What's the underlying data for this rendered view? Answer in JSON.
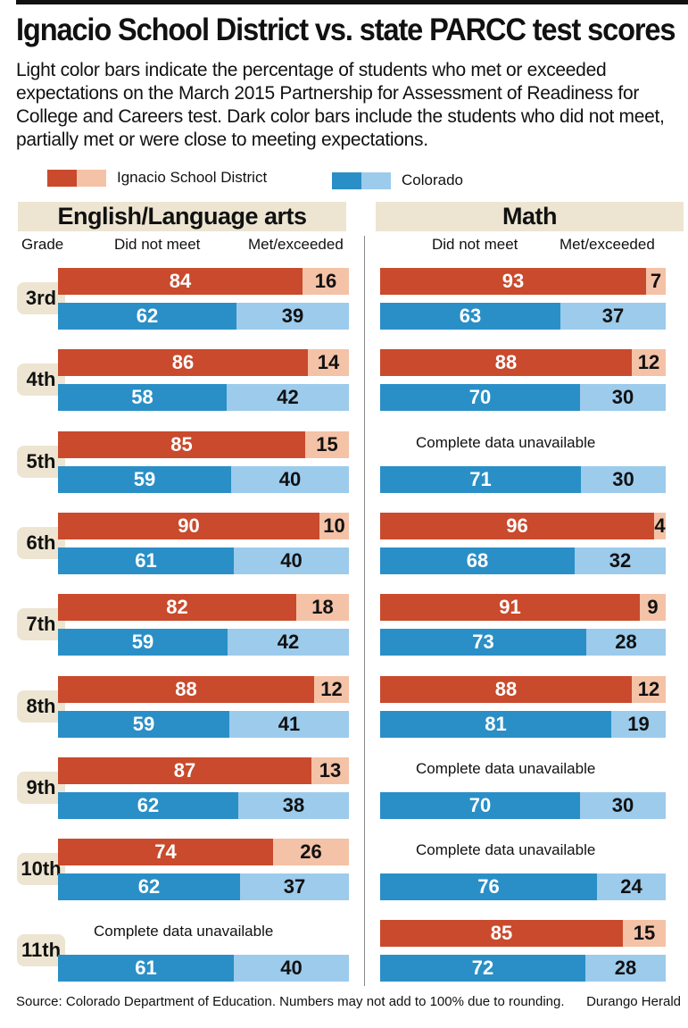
{
  "title": "Ignacio School District vs. state PARCC test scores",
  "subtitle": "Light color bars indicate the percentage of students who met or exceeded expectations on the March 2015 Partnership for Assessment of Readiness for College and Careers test. Dark color bars include the students who did not meet, partially met or were close to meeting expectations.",
  "legend": {
    "ignacio": "Ignacio School District",
    "colorado": "Colorado"
  },
  "colors": {
    "ignacio_dark": "#c94a2c",
    "ignacio_light": "#f4c2a6",
    "colorado_dark": "#2a8fc6",
    "colorado_light": "#9ccbec",
    "header_bg": "#ede5d1"
  },
  "labels": {
    "grade": "Grade",
    "did_not_meet": "Did not meet",
    "met_exceeded": "Met/exceeded",
    "unavailable": "Complete data unavailable",
    "source": "Source: Colorado Department of Education. Numbers may not add to 100% due to rounding.",
    "credit": "Durango Herald"
  },
  "chart_data": {
    "type": "bar",
    "stacked": true,
    "orientation": "horizontal",
    "categories": [
      "3rd",
      "4th",
      "5th",
      "6th",
      "7th",
      "8th",
      "9th",
      "10th",
      "11th"
    ],
    "panels": [
      {
        "title": "English/Language arts",
        "series": [
          {
            "name": "Ignacio School District",
            "did_not_meet": [
              84,
              86,
              85,
              90,
              82,
              88,
              87,
              74,
              null
            ],
            "met_exceeded": [
              16,
              14,
              15,
              10,
              18,
              12,
              13,
              26,
              null
            ]
          },
          {
            "name": "Colorado",
            "did_not_meet": [
              62,
              58,
              59,
              61,
              59,
              59,
              62,
              62,
              61
            ],
            "met_exceeded": [
              39,
              42,
              40,
              40,
              42,
              41,
              38,
              37,
              40
            ]
          }
        ]
      },
      {
        "title": "Math",
        "series": [
          {
            "name": "Ignacio School District",
            "did_not_meet": [
              93,
              88,
              null,
              96,
              91,
              88,
              null,
              null,
              85
            ],
            "met_exceeded": [
              7,
              12,
              null,
              4,
              9,
              12,
              null,
              null,
              15
            ]
          },
          {
            "name": "Colorado",
            "did_not_meet": [
              63,
              70,
              71,
              68,
              73,
              81,
              70,
              76,
              72
            ],
            "met_exceeded": [
              37,
              30,
              30,
              32,
              28,
              19,
              30,
              24,
              28
            ]
          }
        ]
      }
    ]
  }
}
